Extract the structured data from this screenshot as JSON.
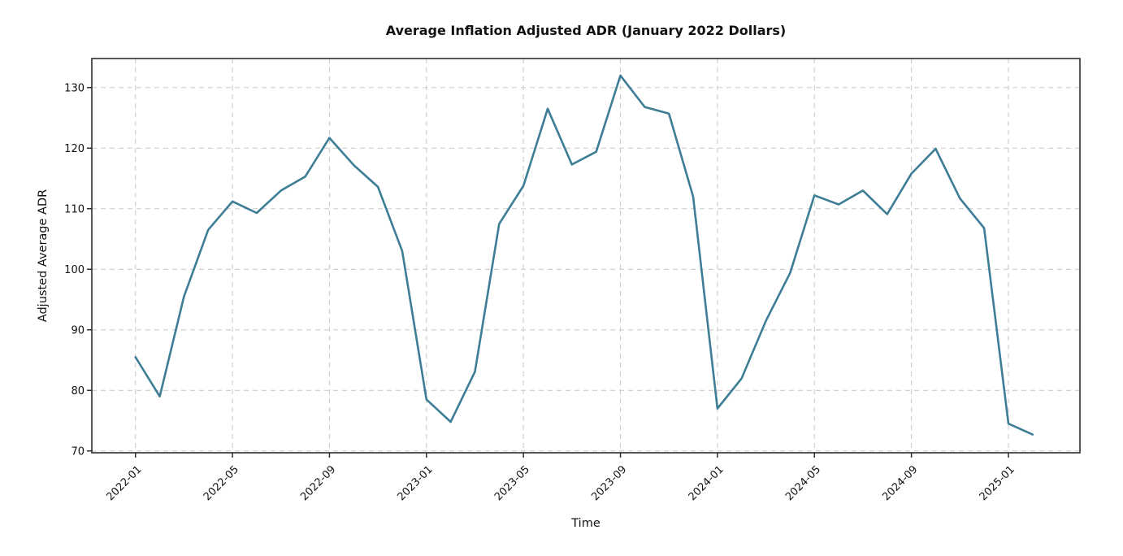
{
  "chart_data": {
    "type": "line",
    "title": "Average Inflation Adjusted ADR (January 2022 Dollars)",
    "xlabel": "Time",
    "ylabel": "Adjusted Average ADR",
    "series_name": "Adjusted Average ADR",
    "x": [
      "2022-01",
      "2022-02",
      "2022-03",
      "2022-04",
      "2022-05",
      "2022-06",
      "2022-07",
      "2022-08",
      "2022-09",
      "2022-10",
      "2022-11",
      "2022-12",
      "2023-01",
      "2023-02",
      "2023-03",
      "2023-04",
      "2023-05",
      "2023-06",
      "2023-07",
      "2023-08",
      "2023-09",
      "2023-10",
      "2023-11",
      "2023-12",
      "2024-01",
      "2024-02",
      "2024-03",
      "2024-04",
      "2024-05",
      "2024-06",
      "2024-07",
      "2024-08",
      "2024-09",
      "2024-10",
      "2024-11",
      "2024-12",
      "2025-01",
      "2025-02"
    ],
    "values": [
      85.5,
      79.0,
      95.5,
      106.5,
      111.2,
      109.3,
      113.0,
      115.3,
      121.7,
      117.2,
      113.6,
      103.0,
      78.5,
      74.8,
      83.1,
      107.5,
      113.8,
      126.5,
      117.3,
      119.4,
      132.0,
      126.8,
      125.7,
      112.0,
      77.0,
      82.0,
      91.5,
      99.4,
      112.2,
      110.7,
      113.0,
      109.1,
      115.8,
      119.9,
      111.7,
      106.8,
      74.5,
      72.7
    ],
    "x_tick_labels": [
      "2022-01",
      "2022-05",
      "2022-09",
      "2023-01",
      "2023-05",
      "2023-09",
      "2024-01",
      "2024-05",
      "2024-09",
      "2025-01"
    ],
    "x_tick_rotation_deg": 45,
    "y_ticks": [
      70,
      80,
      90,
      100,
      110,
      120,
      130
    ],
    "ylim": [
      69.7,
      134.8
    ],
    "x_padding_months": [
      1.8,
      1.95
    ],
    "grid": "dashed",
    "legend_position": "none",
    "colors": {
      "line": "#3e7d96",
      "grid": "#cccccc",
      "axis": "#2e2e2e",
      "text": "#111111",
      "background": "#ffffff"
    }
  }
}
